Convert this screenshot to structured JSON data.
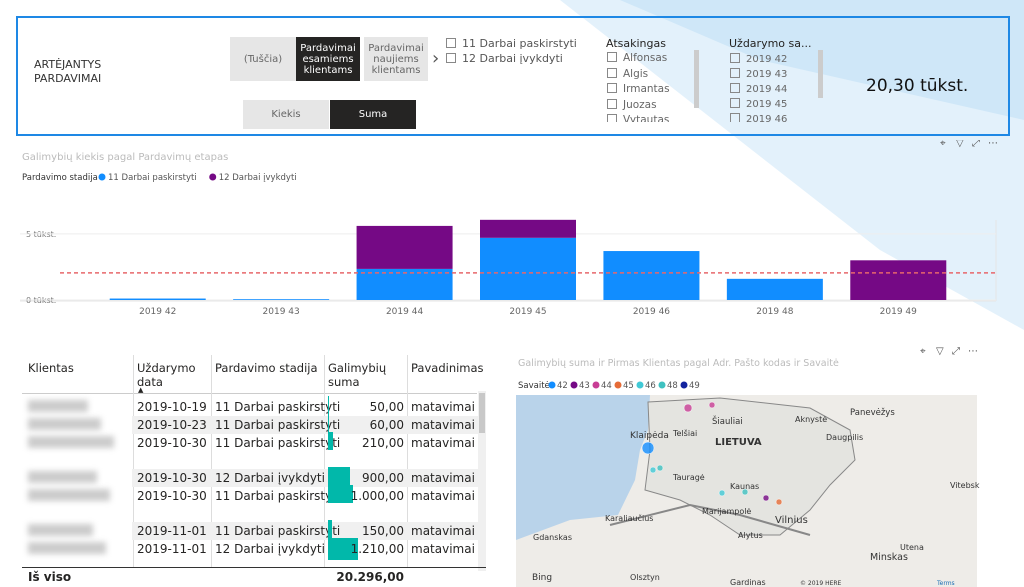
{
  "header": {
    "title": "ARTĖJANTYS PARDAVIMAI",
    "segment_buttons": [
      "(Tuščia)",
      "Pardavimai esamiems klientams",
      "Pardavimai naujiems klientams"
    ],
    "measure_buttons": [
      "Kiekis",
      "Suma"
    ],
    "stage_filter": [
      "11 Darbai paskirstyti",
      "12 Darbai įvykdyti"
    ],
    "responsible": {
      "title": "Atsakingas",
      "items": [
        "Alfonsas",
        "Algis",
        "Irmantas",
        "Juozas",
        "Vytautas"
      ]
    },
    "week": {
      "title": "Uždarymo sa...",
      "items": [
        "2019 42",
        "2019 43",
        "2019 44",
        "2019 45",
        "2019 46"
      ]
    },
    "kpi": "20,30 tūkst."
  },
  "chart_data": {
    "type": "bar",
    "stacked": true,
    "title": "Galimybių kiekis pagal Pardavimų etapas",
    "legend_title": "Pardavimo stadija",
    "categories": [
      "2019 42",
      "2019 43",
      "2019 44",
      "2019 45",
      "2019 46",
      "2019 48",
      "2019 49"
    ],
    "series": [
      {
        "name": "11 Darbai paskirstyti",
        "color": "#118dff",
        "values": [
          110,
          60,
          2350,
          4700,
          3700,
          1600,
          0
        ]
      },
      {
        "name": "12 Darbai įvykdyti",
        "color": "#750985",
        "values": [
          0,
          0,
          3250,
          1360,
          0,
          0,
          3000
        ]
      }
    ],
    "ylim": [
      0,
      6500
    ],
    "yticks": [
      {
        "value": 0,
        "label": "0 tūkst."
      },
      {
        "value": 5000,
        "label": "5 tūkst."
      }
    ],
    "reference_line": 2050,
    "reference_color": "#e8676b"
  },
  "table": {
    "columns": [
      "Klientas",
      "Uždarymo data",
      "Pardavimo stadija",
      "Galimybių suma",
      "Pavadinimas"
    ],
    "rows": [
      [
        "2019-10-19",
        "11 Darbai paskirstyti",
        "matavimai"
      ],
      [
        "2019-10-23",
        "11 Darbai paskirstyti",
        "matavimai"
      ],
      [
        "2019-10-30",
        "11 Darbai paskirstyti",
        "matavimai"
      ],
      [
        "2019-10-30",
        "12 Darbai įvykdyti",
        "matavimai"
      ],
      [
        "2019-10-30",
        "11 Darbai paskirstyti",
        "matavimai"
      ],
      [
        "2019-11-01",
        "11 Darbai paskirstyti",
        "matavimai"
      ],
      [
        "2019-11-01",
        "12 Darbai įvykdyti",
        "matavimai"
      ]
    ],
    "sums": {
      "values": [
        50,
        60,
        210,
        900,
        1000,
        150,
        1210
      ],
      "value_labels": [
        "50,00",
        "60,00",
        "210,00",
        "900,00",
        "1.000,00",
        "150,00",
        "1.210,00"
      ],
      "color": "#01b8aa"
    },
    "total_label": "Iš viso",
    "total": "20.296,00"
  },
  "map": {
    "title": "Galimybių suma ir Pirmas Klientas pagal Adr. Pašto kodas ir Savaitė",
    "legend_title": "Savaitė",
    "legend": [
      {
        "name": "42",
        "color": "#118dff"
      },
      {
        "name": "43",
        "color": "#750985"
      },
      {
        "name": "44",
        "color": "#c83d95"
      },
      {
        "name": "45",
        "color": "#e66c37"
      },
      {
        "name": "46",
        "color": "#41c9d6"
      },
      {
        "name": "48",
        "color": "#3fc1c0"
      },
      {
        "name": "49",
        "color": "#12239e"
      }
    ],
    "places": [
      "LIETUVA",
      "Klaipėda",
      "Šiauliai",
      "Telšiai",
      "Aknystė",
      "Panevėžys",
      "Daugpilis",
      "Utena",
      "Tauragė",
      "Kaunas",
      "Marijampolė",
      "Vilnius",
      "Alytus",
      "Karaliaučius",
      "Gdanskas",
      "Olsztyn",
      "Gardinas",
      "Minskas",
      "Vitebsk",
      "Bing",
      "© 2019 HERE",
      "Terms"
    ]
  }
}
